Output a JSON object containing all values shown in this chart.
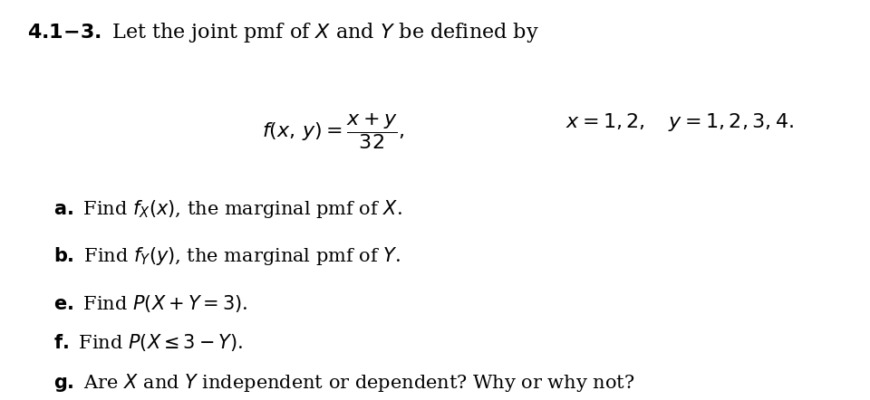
{
  "background_color": "#ffffff",
  "title_bold": "4.1-3.",
  "title_normal": " Let the joint pmf of ",
  "title_italic_X": "X",
  "title_and": " and ",
  "title_italic_Y": "Y",
  "title_end": " be defined by",
  "formula_line1": "$f(x, y) = \\dfrac{x + y}{32},$",
  "formula_domain": "$x = 1, 2, \\quad y = 1, 2, 3, 4.$",
  "items": [
    {
      "label": "a.",
      "text": " Find $f_X(x)$, the marginal pmf of $X$."
    },
    {
      "label": "b.",
      "text": " Find $f_Y(y)$, the marginal pmf of $Y$."
    },
    {
      "label": "e.",
      "text": " Find $P(X + Y = 3)$."
    },
    {
      "label": "f.",
      "text": " Find $P(X \\leq 3 - Y)$."
    },
    {
      "label": "g.",
      "text": " Are $X$ and $Y$ independent or dependent? Why or why not?"
    }
  ],
  "figsize": [
    9.6,
    4.42
  ],
  "dpi": 100
}
